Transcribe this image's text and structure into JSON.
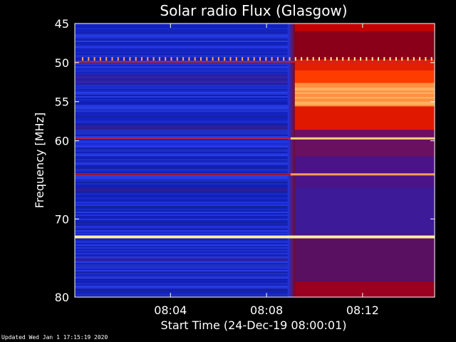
{
  "footer": {
    "updated_text": "Updated Wed Jan  1 17:15:19 2020"
  },
  "chart_data": {
    "type": "heatmap",
    "title": "Solar radio Flux (Glasgow)",
    "xlabel": "Start Time (24-Dec-19 08:00:01)",
    "ylabel": "Frequency [MHz]",
    "x_unit": "time",
    "x_range": [
      "08:00:01",
      "08:15:00"
    ],
    "y_range": [
      45,
      80
    ],
    "y_inverted": true,
    "x_ticks": [
      "08:04",
      "08:08",
      "08:12"
    ],
    "y_ticks": [
      45,
      50,
      55,
      60,
      70,
      80
    ],
    "burst_onset": "08:09",
    "colors": {
      "background": "#000000",
      "low": "#1a2acc",
      "high": "#ff3c00"
    }
  }
}
